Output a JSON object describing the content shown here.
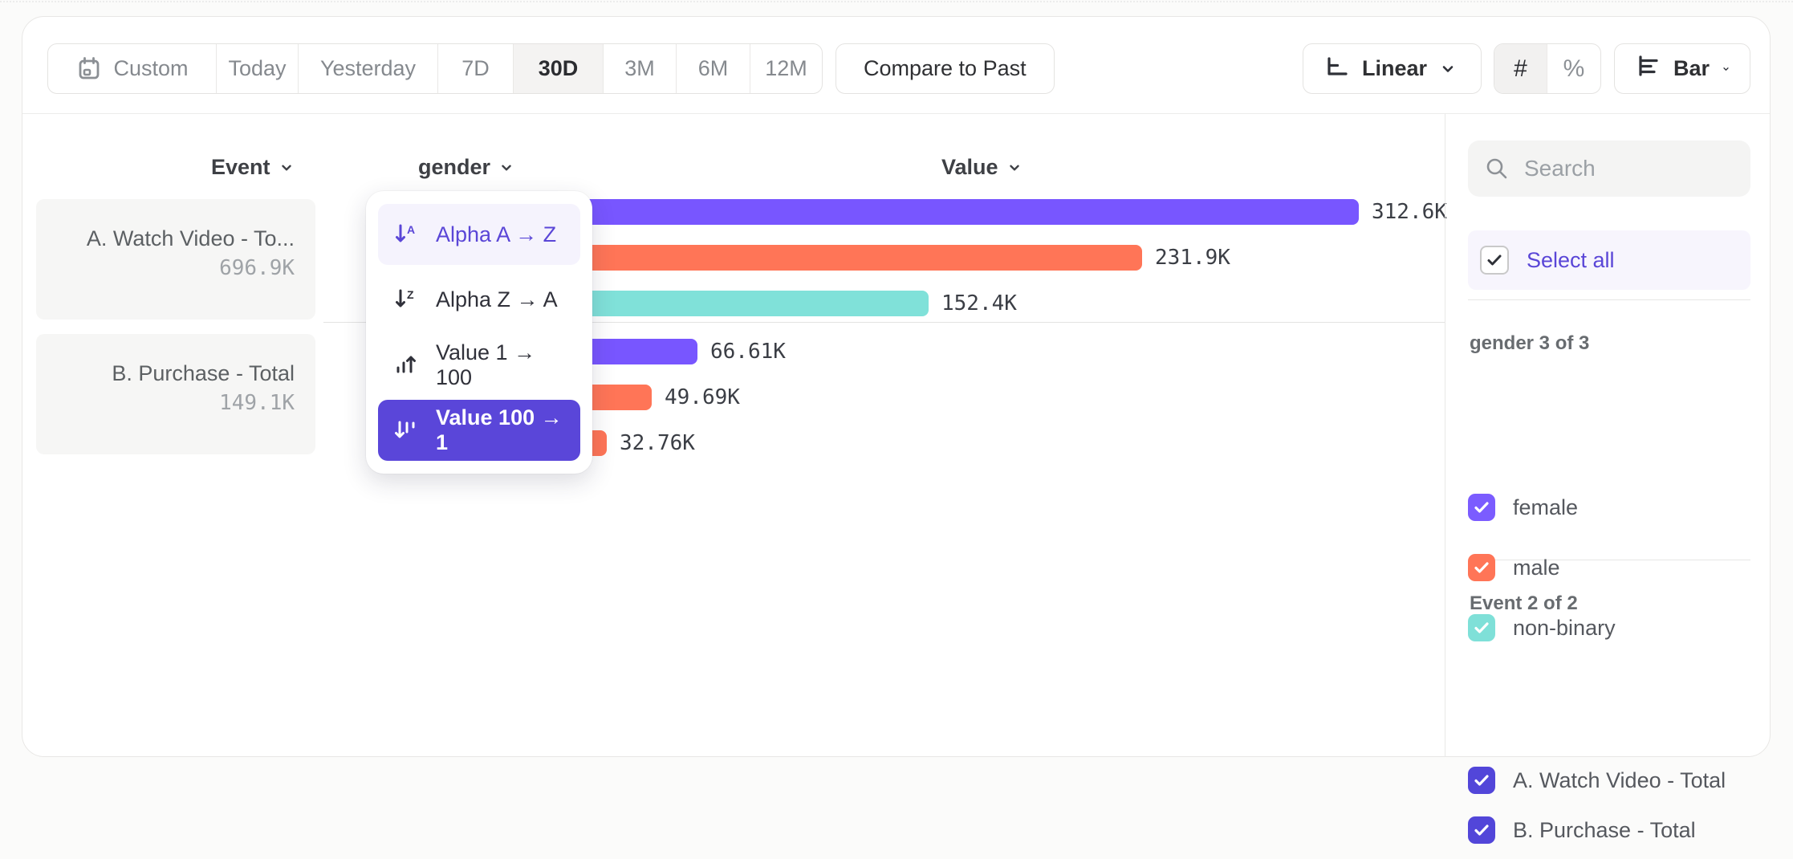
{
  "toolbar": {
    "date_ranges": [
      {
        "label": "Custom",
        "icon": "calendar",
        "selected": false
      },
      {
        "label": "Today",
        "selected": false
      },
      {
        "label": "Yesterday",
        "selected": false
      },
      {
        "label": "7D",
        "selected": false
      },
      {
        "label": "30D",
        "selected": true
      },
      {
        "label": "3M",
        "selected": false
      },
      {
        "label": "6M",
        "selected": false
      },
      {
        "label": "12M",
        "selected": false
      }
    ],
    "compare_label": "Compare to Past",
    "scale_selector": {
      "label": "Linear",
      "icon": "linear-axis-icon"
    },
    "number_format_toggle": {
      "options": [
        "#",
        "%"
      ],
      "selected": "#"
    },
    "chart_type_selector": {
      "label": "Bar",
      "icon": "bar-chart-icon"
    }
  },
  "columns": {
    "event": "Event",
    "breakdown": "gender",
    "value": "Value"
  },
  "events": [
    {
      "name": "A. Watch Video - To...",
      "total": "696.9K"
    },
    {
      "name": "B. Purchase - Total",
      "total": "149.1K"
    }
  ],
  "sort_menu": {
    "items": [
      {
        "label": "Alpha A → Z",
        "icon": "alpha-asc",
        "state": "hover"
      },
      {
        "label": "Alpha Z → A",
        "icon": "alpha-desc",
        "state": "normal"
      },
      {
        "label": "Value 1 → 100",
        "icon": "value-asc",
        "state": "normal"
      },
      {
        "label": "Value 100 → 1",
        "icon": "value-desc",
        "state": "selected"
      }
    ]
  },
  "chart_data": {
    "type": "bar",
    "orientation": "horizontal",
    "value_axis_label": "Value",
    "groups": [
      {
        "event": "A. Watch Video - Total",
        "bars": [
          {
            "category": "female",
            "value_k": 312.6,
            "label": "312.6K",
            "color": "#7856ff"
          },
          {
            "category": "male",
            "value_k": 231.9,
            "label": "231.9K",
            "color": "#ff7557"
          },
          {
            "category": "non-binary",
            "value_k": 152.4,
            "label": "152.4K",
            "color": "#80e1d9"
          }
        ]
      },
      {
        "event": "B. Purchase - Total",
        "bars": [
          {
            "category": "female",
            "value_k": 66.61,
            "label": "66.61K",
            "color": "#7856ff"
          },
          {
            "category": "male",
            "value_k": 49.69,
            "label": "49.69K",
            "color": "#ff7557"
          },
          {
            "category": "non-binary",
            "value_k": 32.76,
            "label": "32.76K",
            "color": "#ff7557"
          }
        ]
      }
    ]
  },
  "sidebar": {
    "search_placeholder": "Search",
    "select_all_label": "Select all",
    "sections": [
      {
        "title": "gender 3 of 3",
        "items": [
          {
            "label": "female",
            "checked": true,
            "color": "#7b5cff"
          },
          {
            "label": "male",
            "checked": true,
            "color": "#ff7557"
          },
          {
            "label": "non-binary",
            "checked": true,
            "color": "#7fe0d8"
          }
        ]
      },
      {
        "title": "Event 2 of 2",
        "items": [
          {
            "label": "A. Watch Video - Total",
            "checked": true,
            "color": "#5246d9"
          },
          {
            "label": "B. Purchase - Total",
            "checked": true,
            "color": "#5246d9"
          }
        ]
      }
    ]
  },
  "colors": {
    "accent_purple": "#5a46d9",
    "bar_purple": "#7856ff",
    "bar_orange": "#ff7557",
    "bar_teal": "#80e1d9"
  }
}
